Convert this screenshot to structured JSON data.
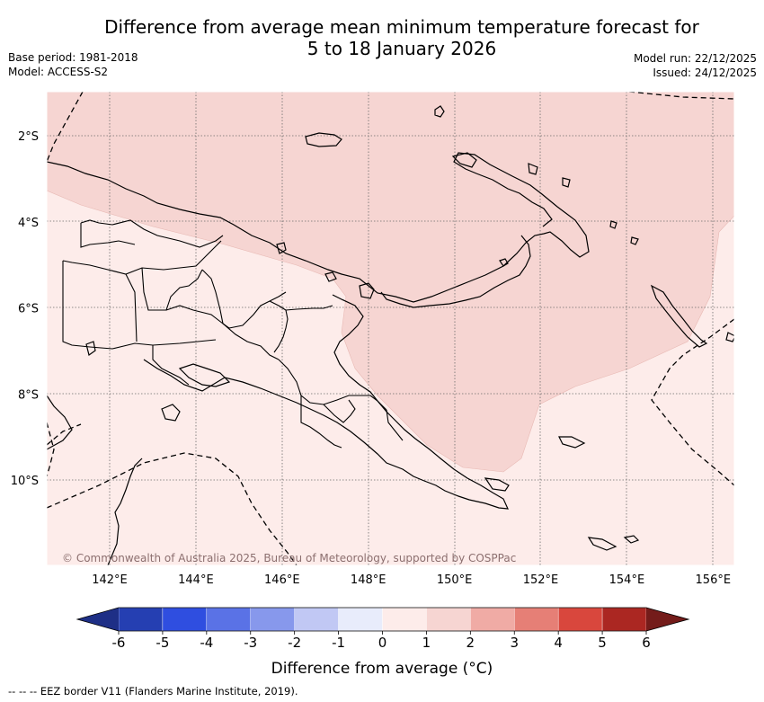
{
  "title_line1": "Difference from average mean minimum temperature forecast for",
  "title_line2": "5 to 18 January 2026",
  "base_period": "Base period: 1981-2018",
  "model": "Model: ACCESS-S2",
  "model_run": "Model run: 22/12/2025",
  "issued": "Issued: 24/12/2025",
  "copyright": "© Commonwealth of Australia 2025, Bureau of Meteorology, supported by COSPPac",
  "legend_label": "Difference from average (°C)",
  "footer": "--  --  -- EEZ border V11 (Flanders Marine Institute, 2019).",
  "map": {
    "lon_ticks": [
      "142°E",
      "144°E",
      "146°E",
      "148°E",
      "150°E",
      "152°E",
      "154°E",
      "156°E"
    ],
    "lat_ticks": [
      "2°S",
      "4°S",
      "6°S",
      "8°S",
      "10°S"
    ],
    "colorbar": {
      "ticks": [
        "-6",
        "-5",
        "-4",
        "-3",
        "-2",
        "-1",
        "0",
        "1",
        "2",
        "3",
        "4",
        "5",
        "6"
      ],
      "colors": [
        "#253fb2",
        "#2f4ee0",
        "#5a72e6",
        "#8798ec",
        "#c1c8f4",
        "#e8ecfb",
        "#fdecea",
        "#f6d5d2",
        "#f0aba5",
        "#e67f76",
        "#d9473d",
        "#ab2722"
      ],
      "min_arrow_color": "#1e2f86",
      "max_arrow_color": "#741c1a"
    },
    "anomaly_colors": {
      "zero_to_one": "#fdecea",
      "one_to_two": "#f6d5d2"
    }
  }
}
